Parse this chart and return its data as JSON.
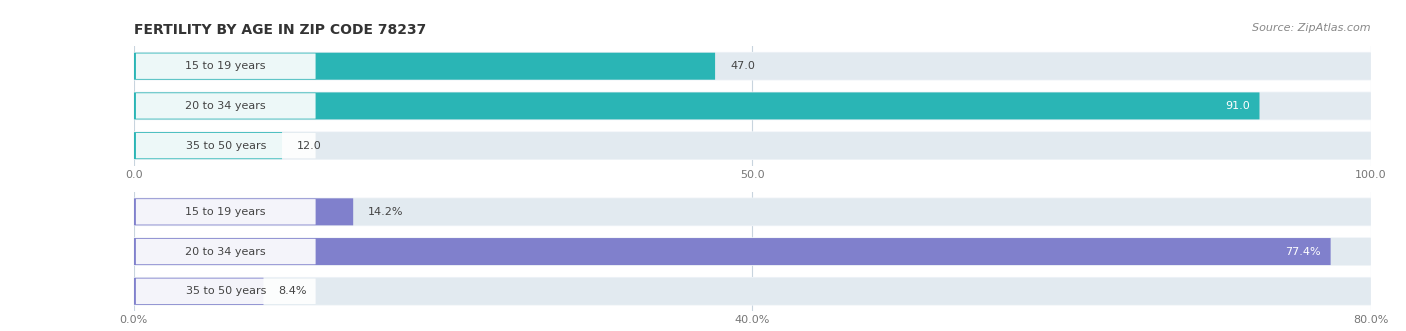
{
  "title": "FERTILITY BY AGE IN ZIP CODE 78237",
  "source": "Source: ZipAtlas.com",
  "top_chart": {
    "categories": [
      "15 to 19 years",
      "20 to 34 years",
      "35 to 50 years"
    ],
    "values": [
      47.0,
      91.0,
      12.0
    ],
    "xlim": [
      0,
      100
    ],
    "xticks": [
      0.0,
      50.0,
      100.0
    ],
    "xtick_labels": [
      "0.0",
      "50.0",
      "100.0"
    ],
    "bar_color": "#2ab5b5",
    "bar_bg_color": "#e2eaf0",
    "label_color": "#555555"
  },
  "bottom_chart": {
    "categories": [
      "15 to 19 years",
      "20 to 34 years",
      "35 to 50 years"
    ],
    "values": [
      14.2,
      77.4,
      8.4
    ],
    "xlim": [
      0,
      80
    ],
    "xticks": [
      0.0,
      40.0,
      80.0
    ],
    "xtick_labels": [
      "0.0%",
      "40.0%",
      "80.0%"
    ],
    "bar_color": "#8080cc",
    "bar_bg_color": "#e2eaf0",
    "label_color": "#555555"
  },
  "fig_bg": "#ffffff",
  "row_bg": "#f0f4f8",
  "title_fontsize": 10,
  "source_fontsize": 8,
  "label_fontsize": 8,
  "value_fontsize": 8,
  "tick_fontsize": 8
}
